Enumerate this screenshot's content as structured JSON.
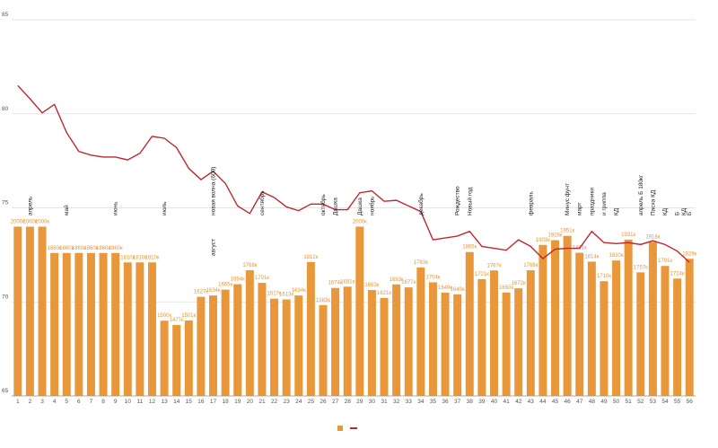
{
  "chart_data": {
    "type": "bar-line",
    "categories": [
      "1",
      "2",
      "3",
      "4",
      "5",
      "6",
      "7",
      "8",
      "9",
      "10",
      "11",
      "12",
      "13",
      "14",
      "15",
      "16",
      "17",
      "18",
      "19",
      "20",
      "21",
      "22",
      "23",
      "24",
      "25",
      "26",
      "27",
      "28",
      "29",
      "30",
      "31",
      "32",
      "33",
      "34",
      "35",
      "36",
      "37",
      "38",
      "39",
      "40",
      "41",
      "42",
      "43",
      "44",
      "45",
      "46",
      "47",
      "48",
      "49",
      "50",
      "51",
      "52",
      "53",
      "54",
      "55",
      "56"
    ],
    "ylim": [
      65,
      85
    ],
    "yticks": [
      65,
      70,
      75,
      80,
      85
    ],
    "grid": true,
    "y2lim": [
      1100,
      3100
    ],
    "series": [
      {
        "kind": "bar",
        "axis": "y2",
        "color": "#e8973a",
        "values": [
          2000,
          2000,
          2000,
          1860,
          1860,
          1860,
          1860,
          1860,
          1860,
          1810,
          1810,
          1810,
          1500,
          1477,
          1501,
          1627,
          1634,
          1665,
          1694,
          1768,
          1701,
          1617,
          1613,
          1634,
          1812,
          1583,
          1674,
          1681,
          2000,
          1663,
          1621,
          1693,
          1677,
          1783,
          1704,
          1649,
          1640,
          1865,
          1721,
          1767,
          1650,
          1672,
          1768,
          1903,
          1928,
          1951,
          1861,
          1814,
          1710,
          1820,
          1931,
          1757,
          1918,
          1791,
          1724,
          1829
        ],
        "value_labels": [
          "2000к",
          "2000к",
          "2000к",
          "1860к",
          "1860к",
          "1860к",
          "1860к",
          "1860к",
          "1860к",
          "1810к",
          "1810к",
          "1810к",
          "1500к",
          "1477к",
          "1501к",
          "1627к",
          "1634к",
          "1665к",
          "1694к",
          "1768к",
          "1701к",
          "1617к",
          "1613к",
          "1634к",
          "1812к",
          "1583к",
          "1674к",
          "1681к",
          "2000к",
          "1663к",
          "1621к",
          "1693к",
          "1677к",
          "1783к",
          "1704к",
          "1649к",
          "1640к",
          "1865к",
          "1721к",
          "1767к",
          "1650к",
          "1672к",
          "1768к",
          "1903к",
          "1928к",
          "1951к",
          "1861к",
          "1814к",
          "1710к",
          "1820к",
          "1931к",
          "1757к",
          "1918к",
          "1791к",
          "1724к",
          "1829к"
        ]
      },
      {
        "kind": "line",
        "color": "#c0282d",
        "values": [
          81.5,
          80.8,
          80.05,
          80.5,
          79.0,
          78.0,
          77.8,
          77.7,
          77.7,
          77.55,
          77.9,
          78.8,
          78.7,
          78.2,
          77.1,
          76.5,
          76.95,
          76.3,
          75.1,
          74.7,
          75.85,
          75.55,
          75.05,
          74.85,
          75.2,
          75.2,
          74.9,
          74.9,
          75.8,
          75.9,
          75.35,
          75.4,
          75.1,
          74.8,
          73.3,
          73.4,
          73.5,
          73.75,
          72.95,
          72.85,
          72.75,
          73.3,
          72.95,
          72.3,
          72.8,
          72.85,
          72.85,
          73.75,
          73.15,
          73.1,
          73.15,
          73.05,
          73.25,
          73.05,
          72.7,
          72.1
        ]
      }
    ],
    "annotations": [
      {
        "category": "2",
        "text": "апрель"
      },
      {
        "category": "5",
        "text": "май"
      },
      {
        "category": "9",
        "text": "июнь"
      },
      {
        "category": "13",
        "text": "июль"
      },
      {
        "category": "17",
        "text": "новая волна (600)"
      },
      {
        "category": "17",
        "text": "август"
      },
      {
        "category": "21",
        "text": "сентябрь"
      },
      {
        "category": "26",
        "text": "октябрь"
      },
      {
        "category": "27",
        "text": "Дашка"
      },
      {
        "category": "29",
        "text": "Дашка"
      },
      {
        "category": "30",
        "text": "ноябрь"
      },
      {
        "category": "34",
        "text": "декабрь"
      },
      {
        "category": "37",
        "text": "Рождество"
      },
      {
        "category": "38",
        "text": "Новый год"
      },
      {
        "category": "43",
        "text": "февраль"
      },
      {
        "category": "46",
        "text": "Минус фунт"
      },
      {
        "category": "47",
        "text": "март"
      },
      {
        "category": "48",
        "text": "праздники"
      },
      {
        "category": "49",
        "text": "и гриппа"
      },
      {
        "category": "50",
        "text": "КД"
      },
      {
        "category": "52",
        "text": "апрель Б 180кг"
      },
      {
        "category": "53",
        "text": "Пасха КД"
      },
      {
        "category": "54",
        "text": "КД"
      },
      {
        "category": "55",
        "text": "Б"
      },
      {
        "category": "56",
        "text": "Б"
      },
      {
        "category": "56",
        "text": "КД"
      }
    ]
  }
}
